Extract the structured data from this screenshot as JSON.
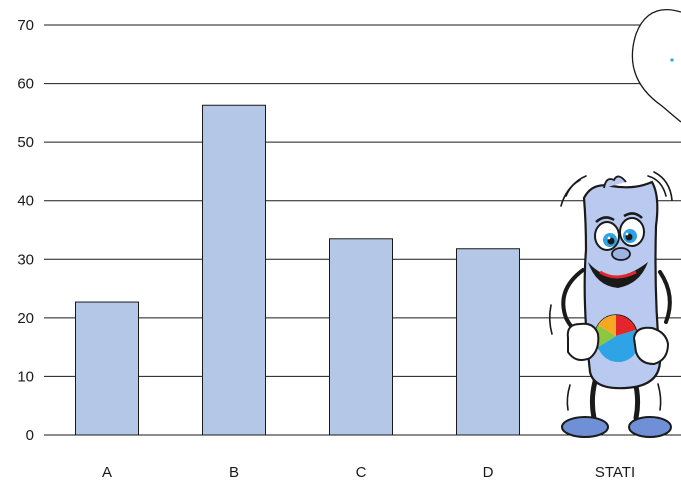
{
  "chart_data": {
    "type": "bar",
    "title": "",
    "xlabel": "",
    "ylabel": "",
    "categories": [
      "A",
      "B",
      "C",
      "D",
      "STATI"
    ],
    "values": [
      22.7,
      56.3,
      33.5,
      31.8,
      null
    ],
    "ylim": [
      0,
      70
    ],
    "yticks": [
      0,
      10,
      20,
      30,
      40,
      50,
      60,
      70
    ],
    "grid": true,
    "legend": "none"
  },
  "colors": {
    "bar_fill": "#b4c7e7",
    "bar_stroke": "#1a1a1a",
    "gridline": "#1a1a1a",
    "mascot_body": "#b9c9ef",
    "mascot_shoe": "#6f8fd6",
    "pie_blue": "#2ea3e6",
    "pie_red": "#e2262b",
    "pie_green": "#8dc63f",
    "pie_orange": "#f7a823"
  },
  "icons": {
    "mascot": "stati-mascot-icon",
    "speech_bubble": "speech-bubble-icon",
    "pie_badge": "pie-chart-icon"
  }
}
